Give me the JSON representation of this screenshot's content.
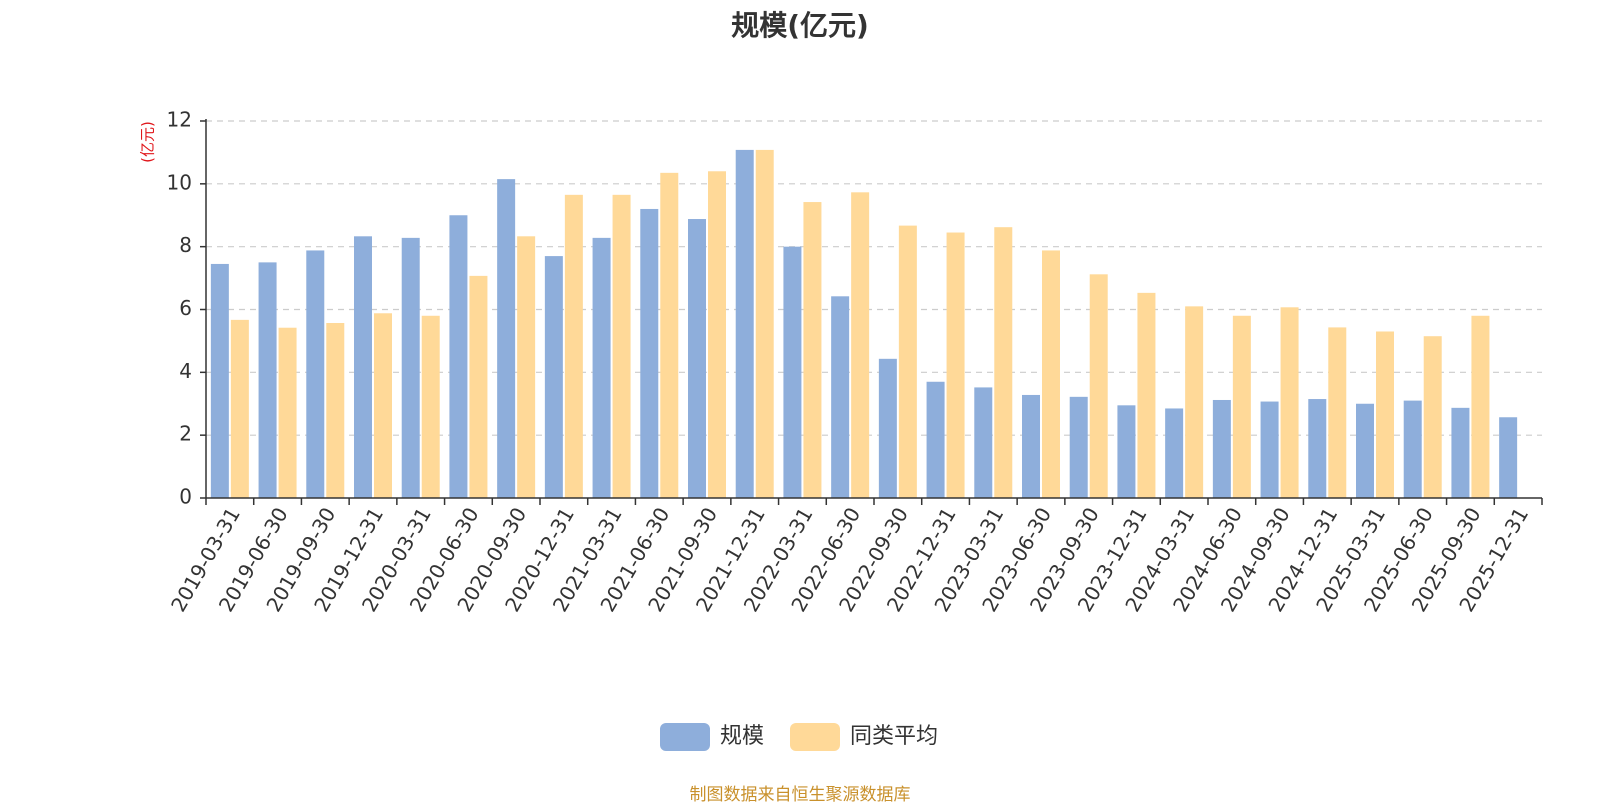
{
  "chart_data": {
    "type": "bar",
    "title": "规模(亿元)",
    "ylabel": "(亿元)",
    "ylim": [
      0,
      12
    ],
    "yticks": [
      0,
      2,
      4,
      6,
      8,
      10,
      12
    ],
    "grid": true,
    "legend_position": "bottom",
    "categories": [
      "2019-03-31",
      "2019-06-30",
      "2019-09-30",
      "2019-12-31",
      "2020-03-31",
      "2020-06-30",
      "2020-09-30",
      "2020-12-31",
      "2021-03-31",
      "2021-06-30",
      "2021-09-30",
      "2021-12-31",
      "2022-03-31",
      "2022-06-30",
      "2022-09-30",
      "2022-12-31",
      "2023-03-31",
      "2023-06-30",
      "2023-09-30",
      "2023-12-31",
      "2024-03-31",
      "2024-06-30",
      "2024-09-30",
      "2024-12-31",
      "2025-03-31",
      "2025-06-30",
      "2025-09-30",
      "2025-12-31"
    ],
    "series": [
      {
        "name": "规模",
        "color": "#8eaedb",
        "values": [
          7.45,
          7.5,
          7.88,
          8.33,
          8.28,
          9.0,
          10.15,
          7.7,
          8.28,
          9.2,
          8.88,
          11.08,
          8.0,
          6.42,
          4.43,
          3.7,
          3.52,
          3.28,
          3.22,
          2.95,
          2.85,
          3.12,
          3.07,
          3.15,
          3.0,
          3.1,
          2.87,
          2.57
        ]
      },
      {
        "name": "同类平均",
        "color": "#ffd998",
        "values": [
          5.67,
          5.42,
          5.57,
          5.88,
          5.8,
          7.07,
          8.33,
          9.65,
          9.65,
          10.35,
          10.4,
          11.08,
          9.42,
          9.73,
          8.67,
          8.45,
          8.62,
          7.88,
          7.12,
          6.53,
          6.1,
          5.8,
          6.07,
          5.43,
          5.3,
          5.15,
          5.8,
          null
        ]
      }
    ]
  },
  "footer": {
    "source": "制图数据来自恒生聚源数据库"
  }
}
